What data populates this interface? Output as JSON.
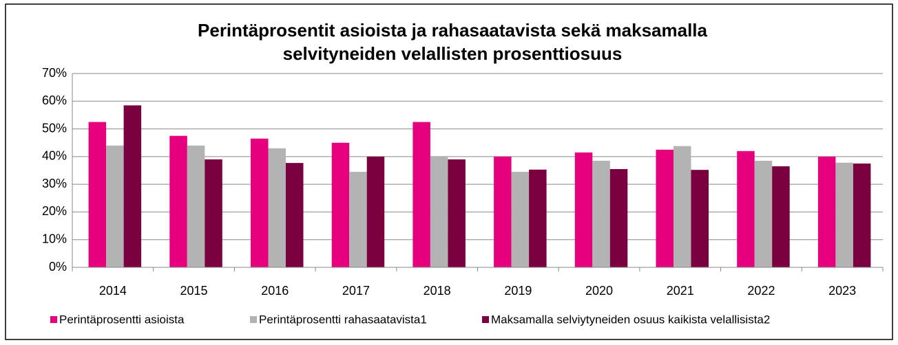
{
  "chart_data": {
    "type": "bar",
    "title": [
      "Perintäprosentit asioista ja rahasaatavista sekä maksamalla",
      "selvityneiden velallisten prosenttiosuus"
    ],
    "categories": [
      "2014",
      "2015",
      "2016",
      "2017",
      "2018",
      "2019",
      "2020",
      "2021",
      "2022",
      "2023"
    ],
    "series": [
      {
        "name": "Perintäprosentti asioista",
        "color": "#e6007e",
        "values": [
          52.5,
          47.5,
          46.5,
          45,
          52.5,
          40,
          41.5,
          42.5,
          42,
          40
        ]
      },
      {
        "name": "Perintäprosentti rahasaatavista1",
        "color": "#b3b3b3",
        "values": [
          44,
          44,
          43,
          34.5,
          40,
          34.5,
          38.5,
          43.8,
          38.5,
          37.8
        ]
      },
      {
        "name": "Maksamalla selviytyneiden osuus kaikista velallisista2",
        "color": "#7a0040",
        "values": [
          58.5,
          39,
          37.7,
          40,
          39,
          35.3,
          35.5,
          35.2,
          36.5,
          37.5
        ]
      }
    ],
    "ylim": [
      0,
      70
    ],
    "yticks": [
      {
        "value": 0,
        "label": "0%"
      },
      {
        "value": 10,
        "label": "10%"
      },
      {
        "value": 20,
        "label": "20%"
      },
      {
        "value": 30,
        "label": "30%"
      },
      {
        "value": 40,
        "label": "40%"
      },
      {
        "value": 50,
        "label": "50%"
      },
      {
        "value": 60,
        "label": "60%"
      },
      {
        "value": 70,
        "label": "70%"
      }
    ],
    "grid": true,
    "legend": "bottom"
  }
}
